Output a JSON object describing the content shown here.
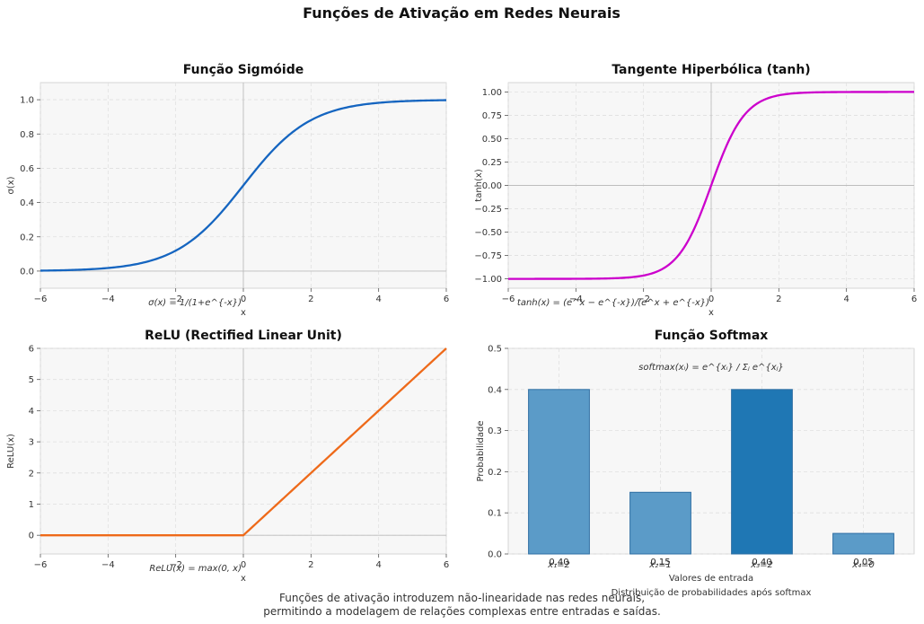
{
  "figure": {
    "title": "Funções de Ativação em Redes Neurais",
    "caption_lines": [
      "Funções de ativação introduzem não-linearidade nas redes neurais,",
      "permitindo a modelagem de relações complexas entre entradas e saídas."
    ]
  },
  "colors": {
    "sigmoid": "#1565c0",
    "tanh": "#cc00cc",
    "relu": "#ee6a1a",
    "softmax_bar": "#5b9bc8",
    "softmax_bar_max": "#1f77b4",
    "panel_bg": "#f7f7f7",
    "grid": "#e0e0e0"
  },
  "chart_data": [
    {
      "id": "sigmoid",
      "type": "line",
      "title": "Função Sigmóide",
      "xlabel": "x",
      "ylabel": "σ(x)",
      "formula": "σ(x) = 1/(1+e^{-x})",
      "function": "sigmoid",
      "x_range": [
        -6,
        6
      ],
      "xlim": [
        -6,
        6
      ],
      "ylim": [
        -0.1,
        1.1
      ],
      "xticks": [
        -6,
        -4,
        -2,
        0,
        2,
        4,
        6
      ],
      "xtick_labels": [
        "−6",
        "−4",
        "−2",
        "0",
        "2",
        "4",
        "6"
      ],
      "yticks": [
        0.0,
        0.2,
        0.4,
        0.6,
        0.8,
        1.0
      ],
      "ytick_labels": [
        "0.0",
        "0.2",
        "0.4",
        "0.6",
        "0.8",
        "1.0"
      ],
      "grid": true
    },
    {
      "id": "tanh",
      "type": "line",
      "title": "Tangente Hiperbólica (tanh)",
      "xlabel": "x",
      "ylabel": "tanh(x)",
      "formula": "tanh(x) = (e^x − e^{-x})/(e^x + e^{-x})",
      "function": "tanh",
      "x_range": [
        -6,
        6
      ],
      "xlim": [
        -6,
        6
      ],
      "ylim": [
        -1.1,
        1.1
      ],
      "xticks": [
        -6,
        -4,
        -2,
        0,
        2,
        4,
        6
      ],
      "xtick_labels": [
        "−6",
        "−4",
        "−2",
        "0",
        "2",
        "4",
        "6"
      ],
      "yticks": [
        -1.0,
        -0.75,
        -0.5,
        -0.25,
        0.0,
        0.25,
        0.5,
        0.75,
        1.0
      ],
      "ytick_labels": [
        "−1.00",
        "−0.75",
        "−0.50",
        "−0.25",
        "0.00",
        "0.25",
        "0.50",
        "0.75",
        "1.00"
      ],
      "grid": true
    },
    {
      "id": "relu",
      "type": "line",
      "title": "ReLU (Rectified Linear Unit)",
      "xlabel": "x",
      "ylabel": "ReLU(x)",
      "formula": "ReLU(x) = max(0, x)",
      "function": "relu",
      "x_range": [
        -6,
        6
      ],
      "xlim": [
        -6,
        6
      ],
      "ylim": [
        -0.6,
        6
      ],
      "xticks": [
        -6,
        -4,
        -2,
        0,
        2,
        4,
        6
      ],
      "xtick_labels": [
        "−6",
        "−4",
        "−2",
        "0",
        "2",
        "4",
        "6"
      ],
      "yticks": [
        0,
        1,
        2,
        3,
        4,
        5,
        6
      ],
      "ytick_labels": [
        "0",
        "1",
        "2",
        "3",
        "4",
        "5",
        "6"
      ],
      "grid": true
    },
    {
      "id": "softmax",
      "type": "bar",
      "title": "Função Softmax",
      "xlabel": "Valores de entrada",
      "ylabel": "Probabilidade",
      "subtitle_below": "Distribuição de probabilidades após softmax",
      "formula": "softmax(xᵢ) = e^{xᵢ} / Σⱼ e^{xⱼ}",
      "categories": [
        "x₁=2",
        "x₂=1",
        "x₃=2",
        "x₄=0"
      ],
      "values": [
        0.4,
        0.15,
        0.4,
        0.05
      ],
      "value_labels": [
        "0.40",
        "0.15",
        "0.40",
        "0.05"
      ],
      "ylim": [
        0,
        0.5
      ],
      "yticks": [
        0.0,
        0.1,
        0.2,
        0.3,
        0.4,
        0.5
      ],
      "ytick_labels": [
        "0.0",
        "0.1",
        "0.2",
        "0.3",
        "0.4",
        "0.5"
      ],
      "highlight_index": 2,
      "grid": true
    }
  ]
}
